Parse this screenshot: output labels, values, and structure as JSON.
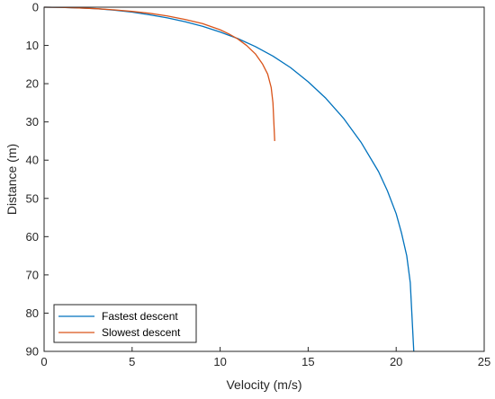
{
  "chart_data": {
    "type": "line",
    "title": "",
    "xlabel": "Velocity (m/s)",
    "ylabel": "Distance (m)",
    "xlim": [
      0,
      25
    ],
    "ylim": [
      0,
      90
    ],
    "y_reversed": true,
    "grid": false,
    "xticks": [
      "0",
      "5",
      "10",
      "15",
      "20",
      "25"
    ],
    "yticks": [
      "0",
      "10",
      "20",
      "30",
      "40",
      "50",
      "60",
      "70",
      "80",
      "90"
    ],
    "legend": {
      "position": "bottom-left"
    },
    "series": [
      {
        "name": "Fastest descent",
        "color": "#0072BD",
        "x": [
          0,
          1,
          2,
          3,
          4,
          5,
          6,
          7,
          8,
          9,
          10,
          11,
          12,
          13,
          14,
          15,
          16,
          17,
          18,
          19,
          19.5,
          20,
          20.3,
          20.6,
          20.8,
          21.0
        ],
        "y": [
          0,
          0.05,
          0.2,
          0.4,
          0.8,
          1.3,
          2.0,
          2.8,
          3.8,
          5.0,
          6.5,
          8.2,
          10.3,
          12.8,
          15.8,
          19.5,
          23.8,
          29.0,
          35.3,
          43.0,
          48.0,
          54.0,
          59.0,
          65.0,
          72.0,
          90.0
        ]
      },
      {
        "name": "Slowest descent",
        "color": "#D95319",
        "x": [
          0,
          1,
          2,
          3,
          4,
          5,
          6,
          7,
          8,
          9,
          10,
          10.5,
          11,
          11.5,
          12,
          12.4,
          12.7,
          12.9,
          13.0,
          13.1
        ],
        "y": [
          0,
          0.05,
          0.2,
          0.4,
          0.7,
          1.1,
          1.6,
          2.3,
          3.2,
          4.3,
          5.9,
          7.0,
          8.3,
          10.0,
          12.2,
          14.8,
          17.5,
          21.0,
          25.0,
          35.0
        ]
      }
    ]
  }
}
